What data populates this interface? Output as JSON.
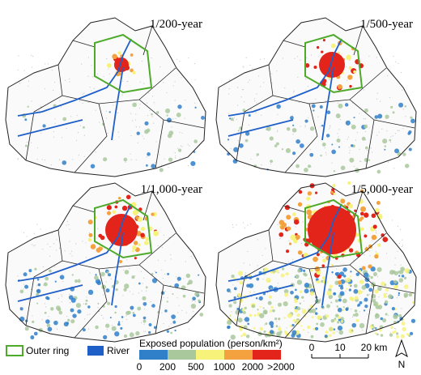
{
  "panels": [
    {
      "title": "1/200-year"
    },
    {
      "title": "1/500-year"
    },
    {
      "title": "1/1,000-year"
    },
    {
      "title": "1/5,000-year"
    }
  ],
  "legend": {
    "outer_ring": "Outer ring",
    "river": "River",
    "title": "Exposed population (person/km²)",
    "colors": [
      "#2f7fc9",
      "#a9c89c",
      "#f6f27a",
      "#f4a23f",
      "#e2241b"
    ],
    "labels": [
      "0",
      "200",
      "500",
      "1000",
      "2000",
      ">2000"
    ]
  },
  "scale_bar": {
    "labels": [
      "0",
      "10",
      "20 km"
    ]
  },
  "north": "N"
}
